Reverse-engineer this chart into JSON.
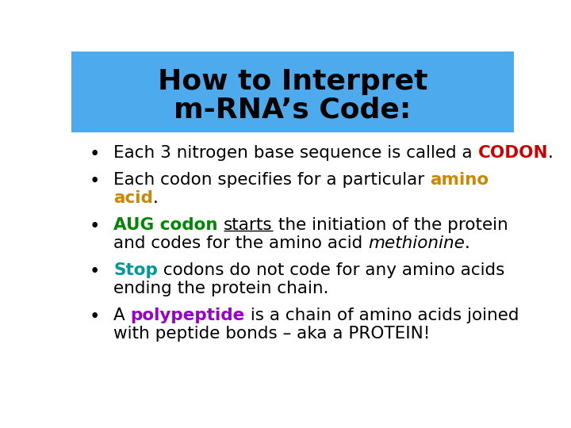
{
  "title_line1": "How to Interpret",
  "title_line2": "m-RNA’s Code:",
  "title_bg_color": "#4DAAED",
  "title_text_color": "#000000",
  "bg_color": "#FFFFFF",
  "title_fontsize": 26,
  "body_fontsize": 15.5,
  "bullets": [
    {
      "lines": [
        [
          {
            "text": "Each 3 nitrogen base sequence is called a ",
            "color": "#000000",
            "bold": false,
            "italic": false,
            "underline": false
          },
          {
            "text": "CODON",
            "color": "#CC0000",
            "bold": true,
            "italic": false,
            "underline": false
          },
          {
            "text": ".",
            "color": "#000000",
            "bold": false,
            "italic": false,
            "underline": false
          }
        ]
      ]
    },
    {
      "lines": [
        [
          {
            "text": "Each codon specifies for a particular ",
            "color": "#000000",
            "bold": false,
            "italic": false,
            "underline": false
          },
          {
            "text": "amino",
            "color": "#CC8800",
            "bold": true,
            "italic": false,
            "underline": false
          }
        ],
        [
          {
            "text": "acid",
            "color": "#CC8800",
            "bold": true,
            "italic": false,
            "underline": false
          },
          {
            "text": ".",
            "color": "#000000",
            "bold": false,
            "italic": false,
            "underline": false
          }
        ]
      ]
    },
    {
      "lines": [
        [
          {
            "text": "AUG codon ",
            "color": "#008800",
            "bold": true,
            "italic": false,
            "underline": false
          },
          {
            "text": "starts",
            "color": "#000000",
            "bold": false,
            "italic": false,
            "underline": true
          },
          {
            "text": " the initiation of the protein",
            "color": "#000000",
            "bold": false,
            "italic": false,
            "underline": false
          }
        ],
        [
          {
            "text": "and codes for the amino acid ",
            "color": "#000000",
            "bold": false,
            "italic": false,
            "underline": false
          },
          {
            "text": "methionine",
            "color": "#000000",
            "bold": false,
            "italic": true,
            "underline": false
          },
          {
            "text": ".",
            "color": "#000000",
            "bold": false,
            "italic": false,
            "underline": false
          }
        ]
      ]
    },
    {
      "lines": [
        [
          {
            "text": "Stop",
            "color": "#009999",
            "bold": true,
            "italic": false,
            "underline": false
          },
          {
            "text": " codons do not code for any amino acids",
            "color": "#000000",
            "bold": false,
            "italic": false,
            "underline": false
          }
        ],
        [
          {
            "text": "ending the protein chain.",
            "color": "#000000",
            "bold": false,
            "italic": false,
            "underline": false
          }
        ]
      ]
    },
    {
      "lines": [
        [
          {
            "text": "A ",
            "color": "#000000",
            "bold": false,
            "italic": false,
            "underline": false
          },
          {
            "text": "polypeptide",
            "color": "#9900CC",
            "bold": true,
            "italic": false,
            "underline": false
          },
          {
            "text": " is a chain of amino acids joined",
            "color": "#000000",
            "bold": false,
            "italic": false,
            "underline": false
          }
        ],
        [
          {
            "text": "with peptide bonds – aka a PROTEIN!",
            "color": "#000000",
            "bold": false,
            "italic": false,
            "underline": false
          }
        ]
      ]
    }
  ]
}
